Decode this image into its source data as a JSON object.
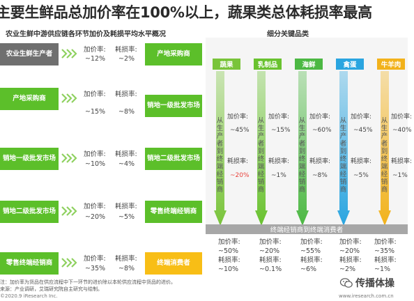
{
  "title": "主要生鲜品总加价率在100%以上，蔬果类总体耗损率最高",
  "left_panel": {
    "subtitle": "农业生鲜中游供应链各环节加价及耗损平均水平概况",
    "rows": [
      {
        "from": "农业生鲜生产者",
        "markup_label": "加价率:",
        "markup": "~12%",
        "loss_label": "耗损率:",
        "loss": "~2%",
        "to": "产地采购商"
      },
      {
        "from": "产地采购商",
        "markup_label": "加价率:",
        "markup": "~15%",
        "loss_label": "耗损率:",
        "loss": "~8%",
        "to": "销地一级批发市场"
      },
      {
        "from": "销地一级批发市场",
        "markup_label": "加价率:",
        "markup": "~10%",
        "loss_label": "耗损率:",
        "loss": "~4%",
        "to": "销地二级批发市场"
      },
      {
        "from": "销地二级批发市场",
        "markup_label": "加价率:",
        "markup": "~20%",
        "loss_label": "耗损率:",
        "loss": "~5%",
        "to": "零售终端经销商"
      },
      {
        "from": "零售终端经销商",
        "markup_label": "加价率:",
        "markup": "~35%",
        "loss_label": "耗损率:",
        "loss": "~8%",
        "to": "终端消费者"
      }
    ]
  },
  "right_panel": {
    "subtitle": "细分关键品类",
    "categories": [
      {
        "name": "蔬果",
        "color": "#79c43a",
        "vertical_text": "从生产者到终端经销商",
        "markup": "~45%",
        "loss": "~20%",
        "loss_highlight": true,
        "total_markup": "~50%",
        "total_loss": "~10%"
      },
      {
        "name": "乳制品",
        "color": "#69c22f",
        "vertical_text": "从生产者到终端经销商",
        "markup": "~15%",
        "loss": "~1%",
        "loss_highlight": false,
        "total_markup": "~20%",
        "total_loss": "~0.1%"
      },
      {
        "name": "海鲜",
        "color": "#4cb843",
        "vertical_text": "从生产者到终端经销商",
        "markup": "~60%",
        "loss": "~8%",
        "loss_highlight": false,
        "total_markup": "~55%",
        "total_loss": "~6%"
      },
      {
        "name": "禽蛋",
        "color": "#2aa5e0",
        "vertical_text": "从生产者到终端经销商",
        "markup": "~45%",
        "loss": "~5%",
        "loss_highlight": false,
        "total_markup": "~20%",
        "total_loss": "~2%"
      },
      {
        "name": "牛羊肉",
        "color": "#f2b21b",
        "vertical_text": "从生产者到终端经销商",
        "markup": "~40%",
        "loss": "~1%",
        "loss_highlight": false,
        "total_markup": "~35%",
        "total_loss": "~1%"
      }
    ],
    "markup_label": "加价率:",
    "loss_label": "耗损率:",
    "band_label": "终端经销商到终端消费者"
  },
  "notes": {
    "note1": "注：加价率为货品在供应流程中下一环节的进价除以本轮供应流程中货品的进价。",
    "source": "来源：产业调研，艾瑞研究院自主研究与绘制。",
    "copyright": "©2020.9 iResearch Inc.",
    "website": "www.iresearch.com.cn"
  },
  "watermark": "传播体操",
  "colors": {
    "green": "#5cbf2a",
    "grey": "#6f6f6f",
    "yellow": "#f8be16",
    "blue": "#2aa5e0",
    "red": "#e8403a"
  },
  "icons": [
    "chevron-right-icon",
    "down-arrow-icon",
    "wechat-icon"
  ]
}
